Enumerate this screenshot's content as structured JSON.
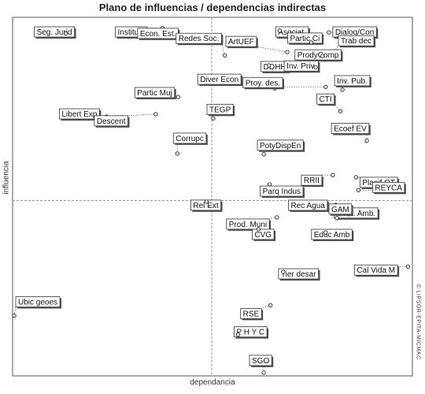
{
  "chart_data": {
    "type": "scatter",
    "title": "Plano de influencias / dependencias indirectas",
    "xlabel": "dependancia",
    "ylabel": "influencia",
    "watermark": "© LIPSOR-EPITA-MICMAC",
    "xlim": [
      0,
      100
    ],
    "ylim": [
      0,
      100
    ],
    "crosshair": {
      "x": 49.8,
      "y": 48.9
    },
    "grid": false,
    "points": [
      {
        "label": "Seg. Jurid",
        "x": 13.3,
        "y": 95.5
      },
      {
        "label": "Instituc.",
        "x": 37.5,
        "y": 97.0
      },
      {
        "label": "Econ. Est.",
        "x": 48.0,
        "y": 93.0
      },
      {
        "label": "Redes Soc.",
        "x": 53.1,
        "y": 89.4
      },
      {
        "label": "Asociat.",
        "x": 66.8,
        "y": 96.3
      },
      {
        "label": "Dialog/Con",
        "x": 79.1,
        "y": 95.8
      },
      {
        "label": "Partic Ci",
        "x": 74.7,
        "y": 93.0
      },
      {
        "label": "ArtUEF",
        "x": 68.7,
        "y": 90.3
      },
      {
        "label": "Trab dec",
        "x": 80.5,
        "y": 90.5
      },
      {
        "label": "ProdyComp",
        "x": 77.5,
        "y": 89.2
      },
      {
        "label": "DDHH",
        "x": 64.1,
        "y": 86.6
      },
      {
        "label": "Inv. Priv.",
        "x": 75.8,
        "y": 86.1
      },
      {
        "label": "Diver Econ",
        "x": 65.6,
        "y": 80.2
      },
      {
        "label": "Proy. des.",
        "x": 78.3,
        "y": 80.6
      },
      {
        "label": "Inv. Pub.",
        "x": 82.5,
        "y": 79.8
      },
      {
        "label": "Partic Muj",
        "x": 41.4,
        "y": 77.8
      },
      {
        "label": "CTI",
        "x": 82.0,
        "y": 73.8
      },
      {
        "label": "Libert Exp",
        "x": 23.5,
        "y": 72.3
      },
      {
        "label": "Descent",
        "x": 35.8,
        "y": 73.0
      },
      {
        "label": "TEGP",
        "x": 50.2,
        "y": 71.8
      },
      {
        "label": "Ecoef EV",
        "x": 88.6,
        "y": 65.6
      },
      {
        "label": "Corrupc",
        "x": 41.2,
        "y": 62.0
      },
      {
        "label": "PotyDispEn",
        "x": 62.8,
        "y": 61.8
      },
      {
        "label": "RRII",
        "x": 80.1,
        "y": 56.0
      },
      {
        "label": "Planif OT",
        "x": 85.9,
        "y": 55.4
      },
      {
        "label": "Parq Indus",
        "x": 64.3,
        "y": 53.4
      },
      {
        "label": "REYCA",
        "x": 86.5,
        "y": 51.8
      },
      {
        "label": "Rel Ext",
        "x": 48.5,
        "y": 48.6
      },
      {
        "label": "Prod. Muni",
        "x": 66.1,
        "y": 44.2
      },
      {
        "label": "Rec Agua",
        "x": 80.8,
        "y": 47.7
      },
      {
        "label": "Cont. Amb.",
        "x": 84.0,
        "y": 45.1
      },
      {
        "label": "GAM",
        "x": 81.1,
        "y": 44.0
      },
      {
        "label": "CVG",
        "x": 61.5,
        "y": 40.9
      },
      {
        "label": "Educ Amb",
        "x": 78.3,
        "y": 40.0
      },
      {
        "label": "Cal Vida M",
        "x": 98.9,
        "y": 30.5
      },
      {
        "label": "Tier desar",
        "x": 67.7,
        "y": 29.0
      },
      {
        "label": "Ubic geoes",
        "x": 0.4,
        "y": 16.8
      },
      {
        "label": "RSE",
        "x": 64.5,
        "y": 19.7
      },
      {
        "label": "P H Y C",
        "x": 56.4,
        "y": 11.5
      },
      {
        "label": "SGO",
        "x": 62.8,
        "y": 0.9
      }
    ]
  }
}
